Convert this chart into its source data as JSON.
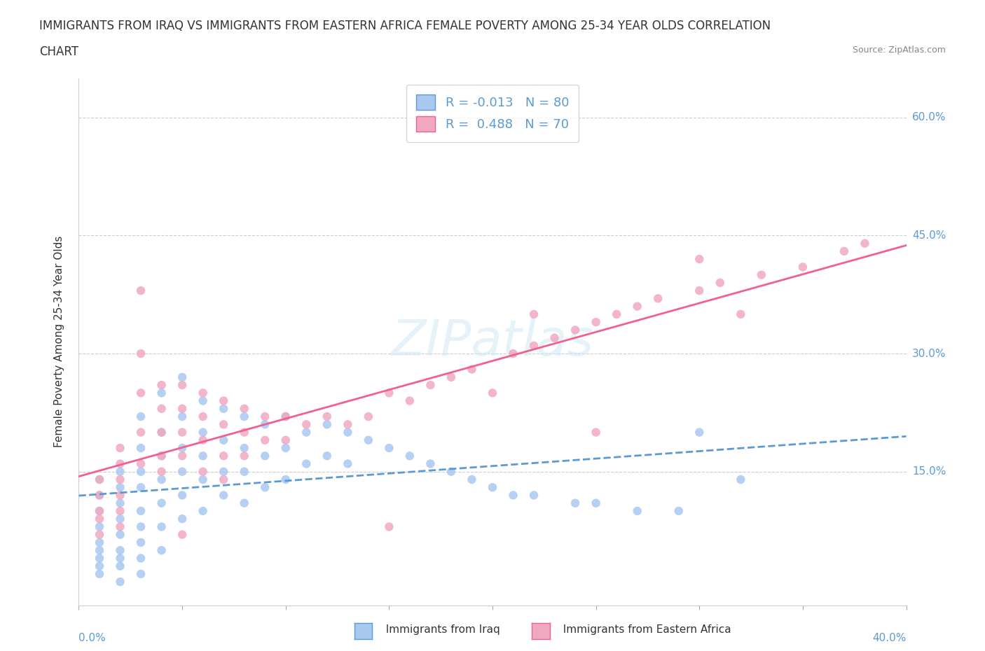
{
  "title_line1": "IMMIGRANTS FROM IRAQ VS IMMIGRANTS FROM EASTERN AFRICA FEMALE POVERTY AMONG 25-34 YEAR OLDS CORRELATION",
  "title_line2": "CHART",
  "source": "Source: ZipAtlas.com",
  "ylabel": "Female Poverty Among 25-34 Year Olds",
  "ylabel_right_ticks": [
    "60.0%",
    "45.0%",
    "30.0%",
    "15.0%"
  ],
  "ylabel_right_vals": [
    0.6,
    0.45,
    0.3,
    0.15
  ],
  "legend_iraq": "R = -0.013   N = 80",
  "legend_africa": "R =  0.488   N = 70",
  "iraq_color": "#a8c8f0",
  "africa_color": "#f0a8c0",
  "iraq_line_color": "#5b9bd5",
  "africa_line_color": "#f06090",
  "watermark": "ZIPatlas",
  "xlim": [
    0.0,
    0.4
  ],
  "ylim": [
    -0.02,
    0.65
  ],
  "iraq_scatter_x": [
    0.01,
    0.01,
    0.01,
    0.01,
    0.01,
    0.01,
    0.01,
    0.01,
    0.01,
    0.02,
    0.02,
    0.02,
    0.02,
    0.02,
    0.02,
    0.02,
    0.02,
    0.02,
    0.03,
    0.03,
    0.03,
    0.03,
    0.03,
    0.03,
    0.03,
    0.03,
    0.03,
    0.04,
    0.04,
    0.04,
    0.04,
    0.04,
    0.04,
    0.04,
    0.05,
    0.05,
    0.05,
    0.05,
    0.05,
    0.05,
    0.06,
    0.06,
    0.06,
    0.06,
    0.06,
    0.07,
    0.07,
    0.07,
    0.07,
    0.08,
    0.08,
    0.08,
    0.08,
    0.09,
    0.09,
    0.09,
    0.1,
    0.1,
    0.1,
    0.11,
    0.11,
    0.12,
    0.12,
    0.13,
    0.13,
    0.14,
    0.15,
    0.16,
    0.17,
    0.18,
    0.19,
    0.2,
    0.21,
    0.22,
    0.24,
    0.25,
    0.27,
    0.29,
    0.3,
    0.32
  ],
  "iraq_scatter_y": [
    0.14,
    0.12,
    0.1,
    0.08,
    0.06,
    0.05,
    0.04,
    0.03,
    0.02,
    0.15,
    0.13,
    0.11,
    0.09,
    0.07,
    0.05,
    0.04,
    0.03,
    0.01,
    0.22,
    0.18,
    0.15,
    0.13,
    0.1,
    0.08,
    0.06,
    0.04,
    0.02,
    0.25,
    0.2,
    0.17,
    0.14,
    0.11,
    0.08,
    0.05,
    0.27,
    0.22,
    0.18,
    0.15,
    0.12,
    0.09,
    0.24,
    0.2,
    0.17,
    0.14,
    0.1,
    0.23,
    0.19,
    0.15,
    0.12,
    0.22,
    0.18,
    0.15,
    0.11,
    0.21,
    0.17,
    0.13,
    0.22,
    0.18,
    0.14,
    0.2,
    0.16,
    0.21,
    0.17,
    0.2,
    0.16,
    0.19,
    0.18,
    0.17,
    0.16,
    0.15,
    0.14,
    0.13,
    0.12,
    0.12,
    0.11,
    0.11,
    0.1,
    0.1,
    0.2,
    0.14
  ],
  "africa_scatter_x": [
    0.01,
    0.01,
    0.01,
    0.01,
    0.01,
    0.02,
    0.02,
    0.02,
    0.02,
    0.02,
    0.02,
    0.03,
    0.03,
    0.03,
    0.03,
    0.03,
    0.04,
    0.04,
    0.04,
    0.04,
    0.04,
    0.05,
    0.05,
    0.05,
    0.05,
    0.06,
    0.06,
    0.06,
    0.06,
    0.07,
    0.07,
    0.07,
    0.08,
    0.08,
    0.08,
    0.09,
    0.09,
    0.1,
    0.1,
    0.11,
    0.12,
    0.13,
    0.14,
    0.15,
    0.16,
    0.17,
    0.18,
    0.19,
    0.21,
    0.22,
    0.23,
    0.24,
    0.25,
    0.26,
    0.27,
    0.28,
    0.3,
    0.31,
    0.33,
    0.35,
    0.37,
    0.38,
    0.05,
    0.07,
    0.15,
    0.2,
    0.22,
    0.25,
    0.3,
    0.32
  ],
  "africa_scatter_y": [
    0.14,
    0.12,
    0.1,
    0.09,
    0.07,
    0.18,
    0.16,
    0.14,
    0.12,
    0.1,
    0.08,
    0.38,
    0.3,
    0.25,
    0.2,
    0.16,
    0.26,
    0.23,
    0.2,
    0.17,
    0.15,
    0.26,
    0.23,
    0.2,
    0.17,
    0.25,
    0.22,
    0.19,
    0.15,
    0.24,
    0.21,
    0.17,
    0.23,
    0.2,
    0.17,
    0.22,
    0.19,
    0.22,
    0.19,
    0.21,
    0.22,
    0.21,
    0.22,
    0.25,
    0.24,
    0.26,
    0.27,
    0.28,
    0.3,
    0.31,
    0.32,
    0.33,
    0.34,
    0.35,
    0.36,
    0.37,
    0.38,
    0.39,
    0.4,
    0.41,
    0.43,
    0.44,
    0.07,
    0.14,
    0.08,
    0.25,
    0.35,
    0.2,
    0.42,
    0.35
  ]
}
